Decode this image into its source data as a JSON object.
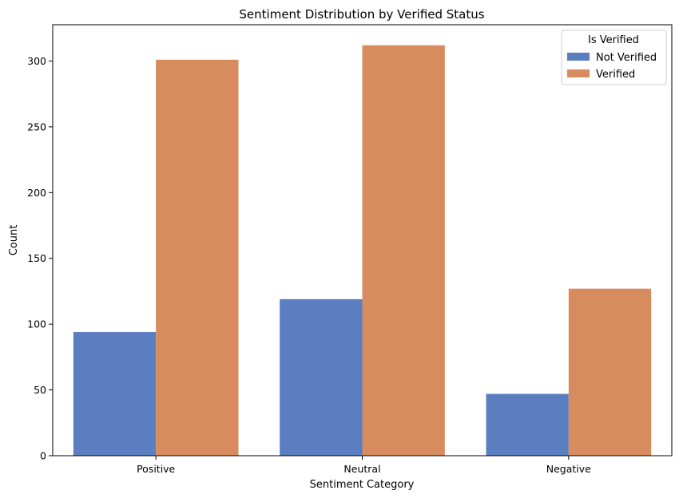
{
  "chart_data": {
    "type": "bar",
    "title": "Sentiment Distribution by Verified Status",
    "xlabel": "Sentiment Category",
    "ylabel": "Count",
    "categories": [
      "Positive",
      "Neutral",
      "Negative"
    ],
    "series": [
      {
        "name": "Not Verified",
        "values": [
          94,
          119,
          47
        ],
        "color": "#5b7ec0"
      },
      {
        "name": "Verified",
        "values": [
          301,
          312,
          127
        ],
        "color": "#d88b5f"
      }
    ],
    "ylim": [
      0,
      327.6
    ],
    "yticks": [
      0,
      50,
      100,
      150,
      200,
      250,
      300
    ],
    "grid": false,
    "legend": {
      "title": "Is Verified",
      "placement": "top-right"
    }
  }
}
